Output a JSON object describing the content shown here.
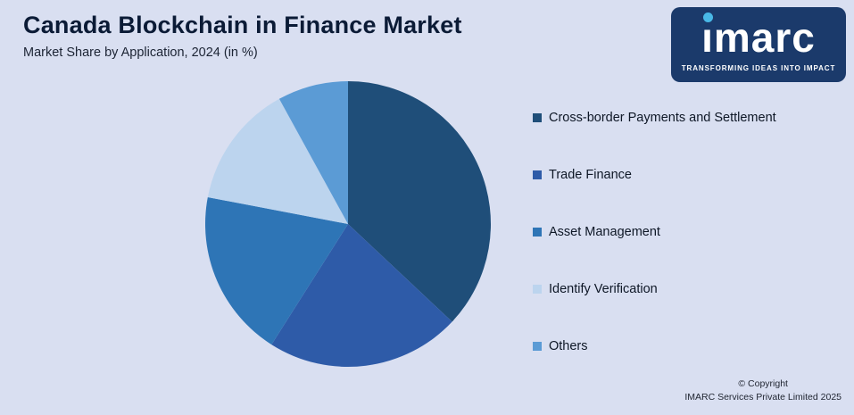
{
  "page": {
    "title": "Canada Blockchain in Finance Market",
    "subtitle": "Market Share by Application, 2024 (in %)"
  },
  "logo": {
    "brand": "imarc",
    "tagline": "TRANSFORMING IDEAS INTO IMPACT",
    "bg_color": "#1b3a6b",
    "dot_color": "#49b8e6"
  },
  "chart_data": {
    "type": "pie",
    "title": "Canada Blockchain in Finance Market",
    "subtitle": "Market Share by Application, 2024 (in %)",
    "start_angle_deg": 0,
    "direction": "clockwise",
    "legend_position": "right",
    "values_shown_on_chart": false,
    "values_are_estimated_from_arc_angles": true,
    "segments": [
      {
        "label": "Cross-border Payments and Settlement",
        "value": 37,
        "color": "#1F4E79"
      },
      {
        "label": "Trade Finance",
        "value": 22,
        "color": "#2E5BA8"
      },
      {
        "label": "Asset Management",
        "value": 19,
        "color": "#2E75B6"
      },
      {
        "label": "Identify Verification",
        "value": 14,
        "color": "#BCD4EE"
      },
      {
        "label": "Others",
        "value": 8,
        "color": "#5B9BD5"
      }
    ]
  },
  "footer": {
    "copyright": "© Copyright",
    "company": "IMARC Services Private Limited 2025"
  }
}
